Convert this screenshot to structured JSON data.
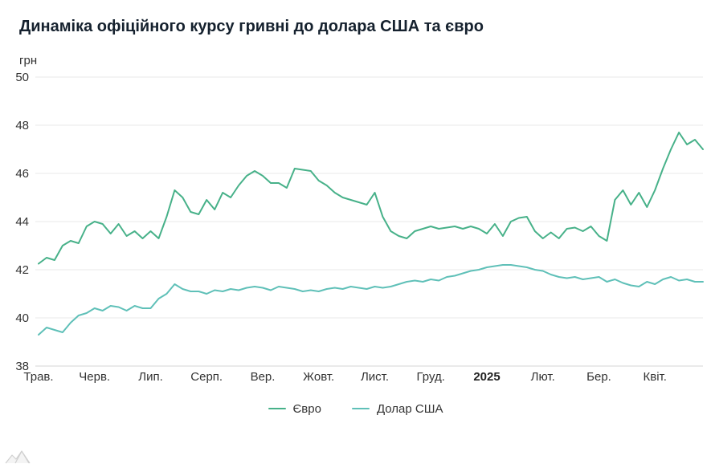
{
  "header": {
    "title": "Динаміка офіційного курсу гривні до долара США та євро"
  },
  "chart_data": {
    "type": "line",
    "title": "Динаміка офіційного курсу гривні до долара США та євро",
    "xlabel": "",
    "ylabel": "грн",
    "ylim": [
      38,
      50
    ],
    "yticks": [
      38,
      40,
      42,
      44,
      46,
      48,
      50
    ],
    "grid": "horizontal",
    "legend_position": "bottom",
    "x_tick_labels": [
      "Трав.",
      "Черв.",
      "Лип.",
      "Серп.",
      "Вер.",
      "Жовт.",
      "Лист.",
      "Груд.",
      "2025",
      "Лют.",
      "Бер.",
      "Квіт."
    ],
    "emphasis_label": "2025",
    "points_per_month": 7,
    "series": [
      {
        "name": "Євро",
        "color": "#47b189",
        "values": [
          42.25,
          42.5,
          42.4,
          43.0,
          43.2,
          43.1,
          43.8,
          44.0,
          43.9,
          43.5,
          43.9,
          43.4,
          43.6,
          43.3,
          43.6,
          43.3,
          44.2,
          45.3,
          45.0,
          44.4,
          44.3,
          44.9,
          44.5,
          45.2,
          45.0,
          45.5,
          45.9,
          46.1,
          45.9,
          45.6,
          45.6,
          45.4,
          46.2,
          46.15,
          46.1,
          45.7,
          45.5,
          45.2,
          45.0,
          44.9,
          44.8,
          44.7,
          45.2,
          44.2,
          43.6,
          43.4,
          43.3,
          43.6,
          43.7,
          43.8,
          43.7,
          43.75,
          43.8,
          43.7,
          43.8,
          43.7,
          43.5,
          43.9,
          43.4,
          44.0,
          44.15,
          44.2,
          43.6,
          43.3,
          43.55,
          43.3,
          43.7,
          43.75,
          43.6,
          43.8,
          43.4,
          43.2,
          44.9,
          45.3,
          44.7,
          45.2,
          44.6,
          45.3,
          46.2,
          47.0,
          47.7,
          47.2,
          47.4,
          47.0
        ]
      },
      {
        "name": "Долар США",
        "color": "#5fc0b8",
        "values": [
          39.3,
          39.6,
          39.5,
          39.4,
          39.8,
          40.1,
          40.2,
          40.4,
          40.3,
          40.5,
          40.45,
          40.3,
          40.5,
          40.4,
          40.4,
          40.8,
          41.0,
          41.4,
          41.2,
          41.1,
          41.1,
          41.0,
          41.15,
          41.1,
          41.2,
          41.15,
          41.25,
          41.3,
          41.25,
          41.15,
          41.3,
          41.25,
          41.2,
          41.1,
          41.15,
          41.1,
          41.2,
          41.25,
          41.2,
          41.3,
          41.25,
          41.2,
          41.3,
          41.25,
          41.3,
          41.4,
          41.5,
          41.55,
          41.5,
          41.6,
          41.55,
          41.7,
          41.75,
          41.85,
          41.95,
          42.0,
          42.1,
          42.15,
          42.2,
          42.2,
          42.15,
          42.1,
          42.0,
          41.95,
          41.8,
          41.7,
          41.65,
          41.7,
          41.6,
          41.65,
          41.7,
          41.5,
          41.6,
          41.45,
          41.35,
          41.3,
          41.5,
          41.4,
          41.6,
          41.7,
          41.55,
          41.6,
          41.5,
          41.5
        ]
      }
    ]
  }
}
